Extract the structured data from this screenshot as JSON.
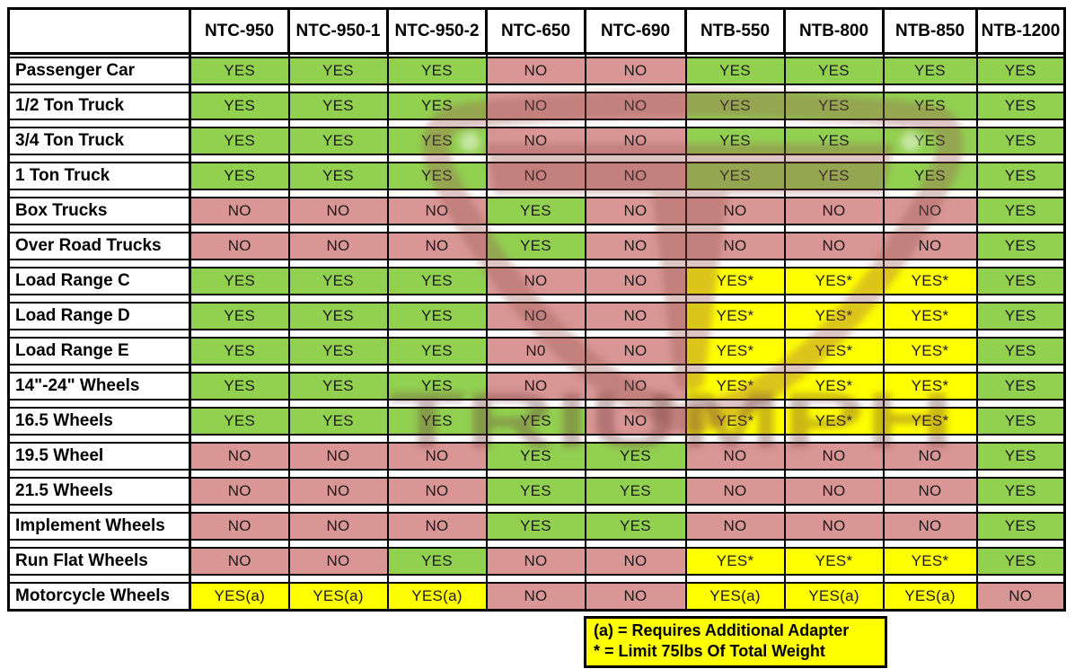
{
  "colors": {
    "yes_green": "#92D050",
    "no_red": "#D99694",
    "note_yellow": "#FFFF00",
    "border_black": "#000000",
    "header_bg": "#FFFFFF"
  },
  "watermark": {
    "brand_text": "TRIUMPH",
    "logo_letter": "T"
  },
  "footnote": {
    "line1": "(a) = Requires Additional Adapter",
    "line2": "* = Limit 75lbs Of Total Weight"
  },
  "chart_data": {
    "type": "table",
    "corner_label": "",
    "columns": [
      "NTC-950",
      "NTC-950-1",
      "NTC-950-2",
      "NTC-650",
      "NTC-690",
      "NTB-550",
      "NTB-800",
      "NTB-850",
      "NTB-1200"
    ],
    "rows": [
      {
        "label": "Passenger Car",
        "values": [
          "YES",
          "YES",
          "YES",
          "NO",
          "NO",
          "YES",
          "YES",
          "YES",
          "YES"
        ]
      },
      {
        "label": "1/2 Ton Truck",
        "values": [
          "YES",
          "YES",
          "YES",
          "NO",
          "NO",
          "YES",
          "YES",
          "YES",
          "YES"
        ]
      },
      {
        "label": "3/4 Ton Truck",
        "values": [
          "YES",
          "YES",
          "YES",
          "NO",
          "NO",
          "YES",
          "YES",
          "YES",
          "YES"
        ]
      },
      {
        "label": "1 Ton Truck",
        "values": [
          "YES",
          "YES",
          "YES",
          "NO",
          "NO",
          "YES",
          "YES",
          "YES",
          "YES"
        ]
      },
      {
        "label": "Box Trucks",
        "values": [
          "NO",
          "NO",
          "NO",
          "YES",
          "NO",
          "NO",
          "NO",
          "NO",
          "YES"
        ]
      },
      {
        "label": "Over Road Trucks",
        "values": [
          "NO",
          "NO",
          "NO",
          "YES",
          "NO",
          "NO",
          "NO",
          "NO",
          "YES"
        ]
      },
      {
        "label": "Load Range C",
        "values": [
          "YES",
          "YES",
          "YES",
          "NO",
          "NO",
          "YES*",
          "YES*",
          "YES*",
          "YES"
        ]
      },
      {
        "label": "Load Range D",
        "values": [
          "YES",
          "YES",
          "YES",
          "NO",
          "NO",
          "YES*",
          "YES*",
          "YES*",
          "YES"
        ]
      },
      {
        "label": "Load Range E",
        "values": [
          "YES",
          "YES",
          "YES",
          "N0",
          "NO",
          "YES*",
          "YES*",
          "YES*",
          "YES"
        ]
      },
      {
        "label": "14\"-24\" Wheels",
        "values": [
          "YES",
          "YES",
          "YES",
          "NO",
          "NO",
          "YES*",
          "YES*",
          "YES*",
          "YES"
        ]
      },
      {
        "label": "16.5 Wheels",
        "values": [
          "YES",
          "YES",
          "YES",
          "YES",
          "NO",
          "YES*",
          "YES*",
          "YES*",
          "YES"
        ]
      },
      {
        "label": "19.5 Wheel",
        "values": [
          "NO",
          "NO",
          "NO",
          "YES",
          "YES",
          "NO",
          "NO",
          "NO",
          "YES"
        ]
      },
      {
        "label": "21.5 Wheels",
        "values": [
          "NO",
          "NO",
          "NO",
          "YES",
          "YES",
          "NO",
          "NO",
          "NO",
          "YES"
        ]
      },
      {
        "label": "Implement Wheels",
        "values": [
          "NO",
          "NO",
          "NO",
          "YES",
          "YES",
          "NO",
          "NO",
          "NO",
          "YES"
        ]
      },
      {
        "label": "Run Flat Wheels",
        "values": [
          "NO",
          "NO",
          "YES",
          "NO",
          "NO",
          "YES*",
          "YES*",
          "YES*",
          "YES"
        ]
      },
      {
        "label": "Motorcycle Wheels",
        "values": [
          "YES(a)",
          "YES(a)",
          "YES(a)",
          "NO",
          "NO",
          "YES(a)",
          "YES(a)",
          "YES(a)",
          "NO"
        ]
      }
    ]
  }
}
